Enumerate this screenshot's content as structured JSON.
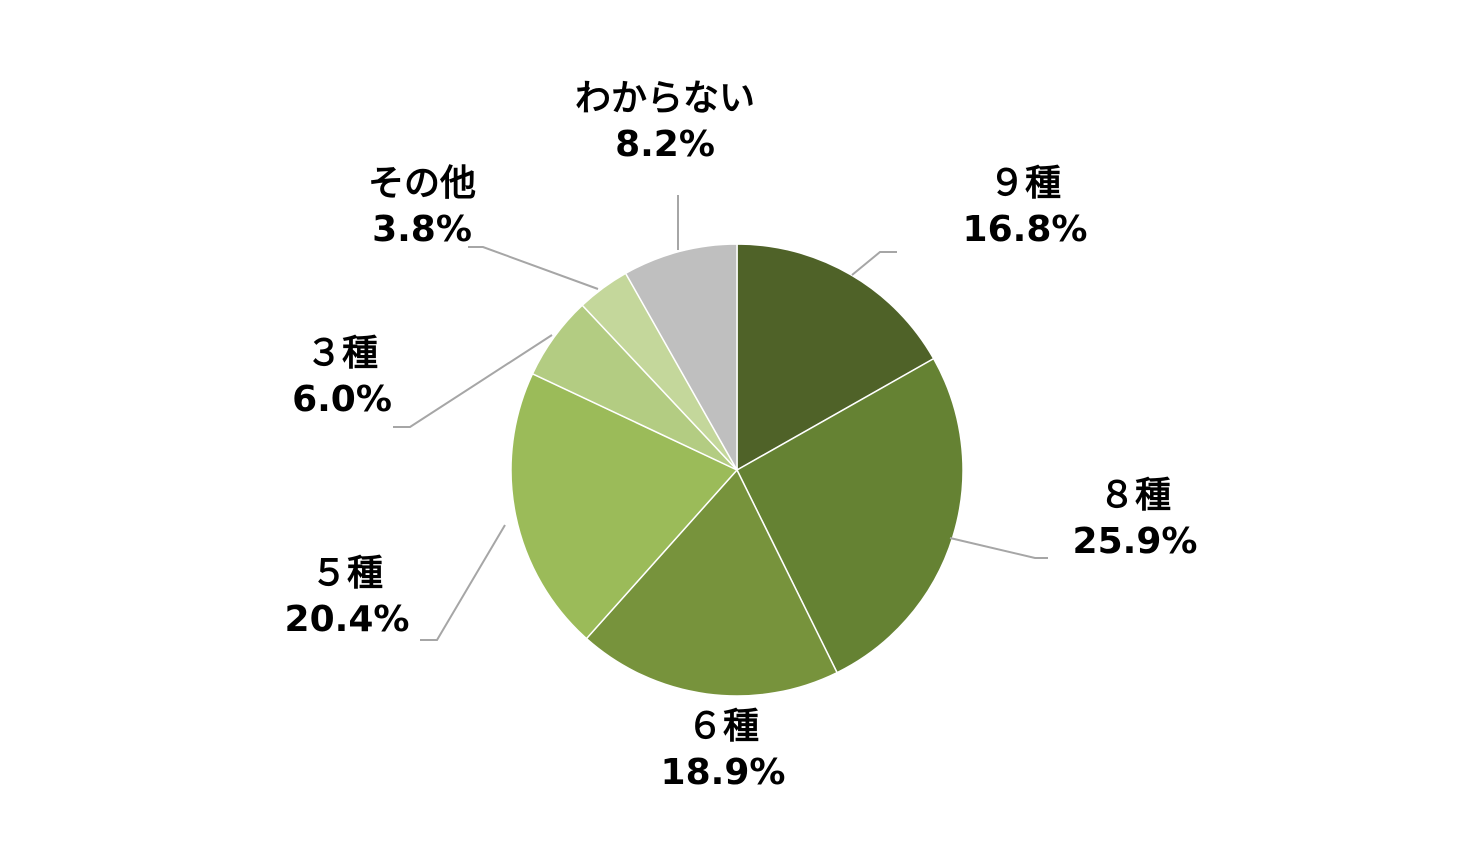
{
  "chart_data": {
    "type": "pie",
    "categories": [
      "９種",
      "８種",
      "６種",
      "５種",
      "３種",
      "その他",
      "わからない"
    ],
    "values": [
      16.8,
      25.9,
      18.9,
      20.4,
      6.0,
      3.8,
      8.2
    ],
    "value_labels": [
      "16.8%",
      "25.9%",
      "18.9%",
      "20.4%",
      "6.0%",
      "3.8%",
      "8.2%"
    ],
    "colors": [
      "#4f6228",
      "#658233",
      "#77933c",
      "#9bbb59",
      "#b3cc82",
      "#c4d79b",
      "#bfbfbf"
    ]
  }
}
